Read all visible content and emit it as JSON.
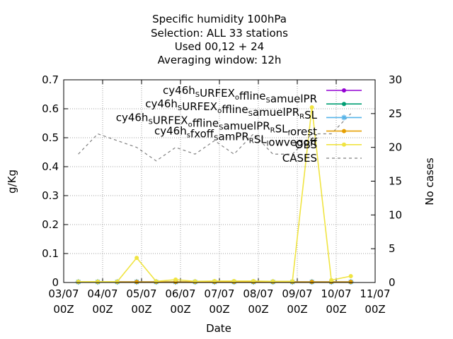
{
  "chart_data": {
    "type": "line",
    "title_lines": [
      "Specific humidity 100hPa",
      "Selection: ALL      33 stations",
      "Used  00,12  + 24",
      "Averaging window: 12h"
    ],
    "xlabel": "Date",
    "ylabel": "g/Kg",
    "y2label": "No cases",
    "x_ticks": [
      {
        "l1": "03/07",
        "l2": "00Z"
      },
      {
        "l1": "04/07",
        "l2": "00Z"
      },
      {
        "l1": "05/07",
        "l2": "00Z"
      },
      {
        "l1": "06/07",
        "l2": "00Z"
      },
      {
        "l1": "07/07",
        "l2": "00Z"
      },
      {
        "l1": "08/07",
        "l2": "00Z"
      },
      {
        "l1": "09/07",
        "l2": "00Z"
      },
      {
        "l1": "10/07",
        "l2": "00Z"
      },
      {
        "l1": "11/07",
        "l2": "00Z"
      }
    ],
    "xlim": [
      0,
      8
    ],
    "ylim": [
      0,
      0.7
    ],
    "y_ticks": [
      "0",
      "0.1",
      "0.2",
      "0.3",
      "0.4",
      "0.5",
      "0.6",
      "0.7"
    ],
    "y2lim": [
      0,
      30
    ],
    "y2_ticks": [
      "0",
      "5",
      "10",
      "15",
      "20",
      "25",
      "30"
    ],
    "grid": true,
    "legend_position": "top-right",
    "x": [
      0.375,
      0.875,
      1.375,
      1.875,
      2.375,
      2.875,
      3.375,
      3.875,
      4.375,
      4.875,
      5.375,
      5.875,
      6.375,
      6.875,
      7.375
    ],
    "series": [
      {
        "name": [
          {
            "t": "cy46h"
          },
          {
            "t": "S",
            "sub": true
          },
          {
            "t": "URFEX"
          },
          {
            "t": "o",
            "sub": true
          },
          {
            "t": "ffline"
          },
          {
            "t": "S",
            "sub": true
          },
          {
            "t": "amuelPR"
          }
        ],
        "color": "#9400d3",
        "marker": "circle",
        "axis": "y1",
        "values": [
          0.002,
          0.002,
          0.002,
          0.002,
          0.002,
          0.002,
          0.002,
          0.002,
          0.002,
          0.002,
          0.002,
          0.002,
          0.002,
          0.002,
          0.002
        ]
      },
      {
        "name": [
          {
            "t": "cy46h"
          },
          {
            "t": "S",
            "sub": true
          },
          {
            "t": "URFEX"
          },
          {
            "t": "o",
            "sub": true
          },
          {
            "t": "ffline"
          },
          {
            "t": "S",
            "sub": true
          },
          {
            "t": "amuelPR"
          },
          {
            "t": "R",
            "sub": true
          },
          {
            "t": "SL"
          }
        ],
        "color": "#009e73",
        "marker": "circle",
        "axis": "y1",
        "values": [
          0.002,
          0.002,
          0.002,
          0.002,
          0.002,
          0.002,
          0.002,
          0.002,
          0.002,
          0.002,
          0.002,
          0.002,
          0.002,
          0.002,
          0.002
        ]
      },
      {
        "name": [
          {
            "t": "cy46h"
          },
          {
            "t": "S",
            "sub": true
          },
          {
            "t": "URFEX"
          },
          {
            "t": "o",
            "sub": true
          },
          {
            "t": "ffline"
          },
          {
            "t": "S",
            "sub": true
          },
          {
            "t": "amuelPR"
          },
          {
            "t": "R",
            "sub": true
          },
          {
            "t": "SL"
          },
          {
            "t": "f",
            "sub": true
          },
          {
            "t": "orest"
          }
        ],
        "color": "#56b4e9",
        "marker": "star",
        "axis": "y1",
        "values": [
          0.002,
          0.002,
          0.002,
          0.002,
          0.002,
          0.002,
          0.002,
          0.002,
          0.002,
          0.002,
          0.002,
          0.002,
          0.002,
          0.002,
          0.002
        ]
      },
      {
        "name": [
          {
            "t": "cy46h"
          },
          {
            "t": "s",
            "sub": true
          },
          {
            "t": "fxoff"
          },
          {
            "t": "S",
            "sub": true
          },
          {
            "t": "amPR"
          },
          {
            "t": "R",
            "sub": true
          },
          {
            "t": "SL"
          },
          {
            "t": "l",
            "sub": true
          },
          {
            "t": "owvegoff"
          }
        ],
        "color": "#e69f00",
        "marker": "circle",
        "axis": "y1",
        "values": [
          0.002,
          0.002,
          0.002,
          0.002,
          0.002,
          0.002,
          0.002,
          0.002,
          0.002,
          0.002,
          0.002,
          0.002,
          0.002,
          0.002,
          0.002
        ]
      },
      {
        "name": [
          {
            "t": "OBS"
          }
        ],
        "color": "#f0e442",
        "marker": "circle",
        "axis": "y1",
        "values": [
          0.003,
          0.003,
          0.003,
          0.085,
          0.004,
          0.01,
          0.004,
          0.005,
          0.005,
          0.005,
          0.004,
          0.004,
          0.605,
          0.008,
          0.022
        ]
      },
      {
        "name": [
          {
            "t": "CASES"
          }
        ],
        "color": "#808080",
        "marker": "none",
        "dashed": true,
        "axis": "y2",
        "values": [
          19,
          22,
          21,
          20,
          18,
          20,
          19,
          21,
          19,
          22,
          19,
          19,
          22,
          22,
          25
        ]
      }
    ]
  }
}
